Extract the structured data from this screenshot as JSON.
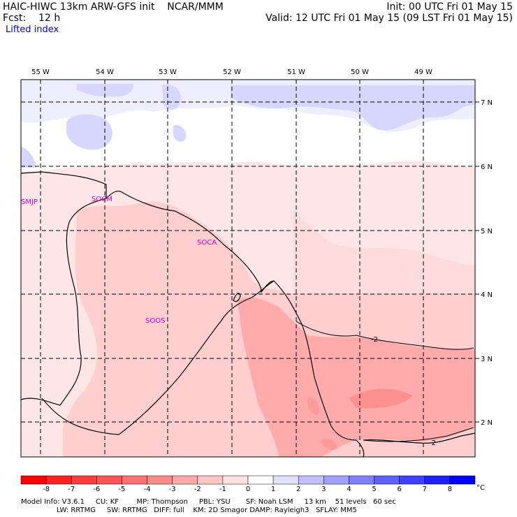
{
  "header": {
    "title_left": "HAIC-HIWC 13km ARW-GFS init    NCAR/MMM",
    "fcst_left": "Fcst:    12 h",
    "field": "Lifted index",
    "init": "Init: 00 UTC Fri 01 May 15",
    "valid": "Valid: 12 UTC Fri 01 May 15 (09 LST Fri 01 May 15)"
  },
  "map": {
    "lon_labels": [
      "55 W",
      "54 W",
      "53 W",
      "52 W",
      "51 W",
      "50 W",
      "49 W"
    ],
    "lat_labels": [
      "7 N",
      "6 N",
      "5 N",
      "4 N",
      "3 N",
      "2 N"
    ],
    "stations": [
      "SMJP",
      "SOCM",
      "SOCA",
      "SOOS"
    ],
    "contour_labels": [
      "-2",
      "-2"
    ]
  },
  "colorbar": {
    "ticks": [
      "-8",
      "-7",
      "-6",
      "-5",
      "-4",
      "-3",
      "-2",
      "-1",
      "0",
      "1",
      "2",
      "3",
      "4",
      "5",
      "6",
      "7",
      "8"
    ],
    "unit": "°C",
    "colors": [
      "#ff0000",
      "#ff2020",
      "#ff3c3c",
      "#ff5555",
      "#ff7070",
      "#ff8c8c",
      "#ffa8a8",
      "#ffc4c4",
      "#ffe0e0",
      "#ffffff",
      "#e0e0ff",
      "#c0c0ff",
      "#a0a0ff",
      "#8080ff",
      "#6060ff",
      "#4040ff",
      "#2020ff",
      "#0000ff"
    ]
  },
  "footer": {
    "line1": "Model Info: V3.6.1     CU: KF        MP: Thompson     PBL: YSU       SF: Noah LSM     13 km    51 levels   60 sec",
    "line2": "                LW: RRTMG     SW: RRTMG   DIFF: full    KM: 2D Smagor DAMP: Rayleigh3   SFLAY: MM5"
  }
}
